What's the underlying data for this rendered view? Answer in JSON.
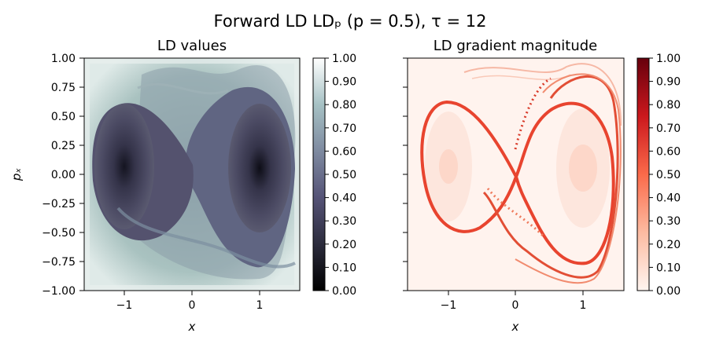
{
  "figure": {
    "title": "Forward LD LDₚ (p = 0.5), τ = 12"
  },
  "chart_data": [
    {
      "type": "heatmap",
      "title": "LD values",
      "xlabel": "x",
      "ylabel": "pₓ",
      "xlim": [
        -1.6,
        1.6
      ],
      "ylim": [
        -1.0,
        1.0
      ],
      "xticks": [
        "−1",
        "0",
        "1"
      ],
      "yticks": [
        "1.00",
        "0.75",
        "0.50",
        "0.25",
        "0.00",
        "−0.25",
        "−0.50",
        "−0.75",
        "−1.00"
      ],
      "colormap": "bone",
      "colorbar": {
        "range": [
          0.0,
          1.0
        ],
        "ticks": [
          "1.00",
          "0.90",
          "0.80",
          "0.70",
          "0.60",
          "0.50",
          "0.40",
          "0.30",
          "0.20",
          "0.10",
          "0.00"
        ],
        "colors": [
          "#000000",
          "#2c2c3d",
          "#555377",
          "#7e8aa0",
          "#a6c1c4",
          "#ffffff"
        ]
      },
      "field": "Lagrangian descriptor of the double-well Hamiltonian H = p²/2 − x²/2 + x⁴/4; low values (dark) inside the two wells near (±1, 0), high values (light) outside the separatrix",
      "minima": [
        {
          "x": -1.0,
          "y": 0.05
        },
        {
          "x": 1.0,
          "y": 0.05
        }
      ]
    },
    {
      "type": "heatmap",
      "title": "LD gradient magnitude",
      "xlabel": "x",
      "ylabel": "",
      "xlim": [
        -1.6,
        1.6
      ],
      "ylim": [
        -1.0,
        1.0
      ],
      "xticks": [
        "−1",
        "0",
        "1"
      ],
      "colormap": "Reds",
      "colorbar": {
        "range": [
          0.0,
          1.0
        ],
        "ticks": [
          "1.00",
          "0.90",
          "0.80",
          "0.70",
          "0.60",
          "0.50",
          "0.40",
          "0.30",
          "0.20",
          "0.10",
          "0.00"
        ],
        "colors": [
          "#fff5f0",
          "#fcbba1",
          "#fb6a4a",
          "#cb181d",
          "#67000d"
        ]
      },
      "field": "Gradient magnitude of the LD field; maxima (dark red) concentrated on the figure-eight separatrix and its outer stable/unstable manifold lobes"
    }
  ]
}
